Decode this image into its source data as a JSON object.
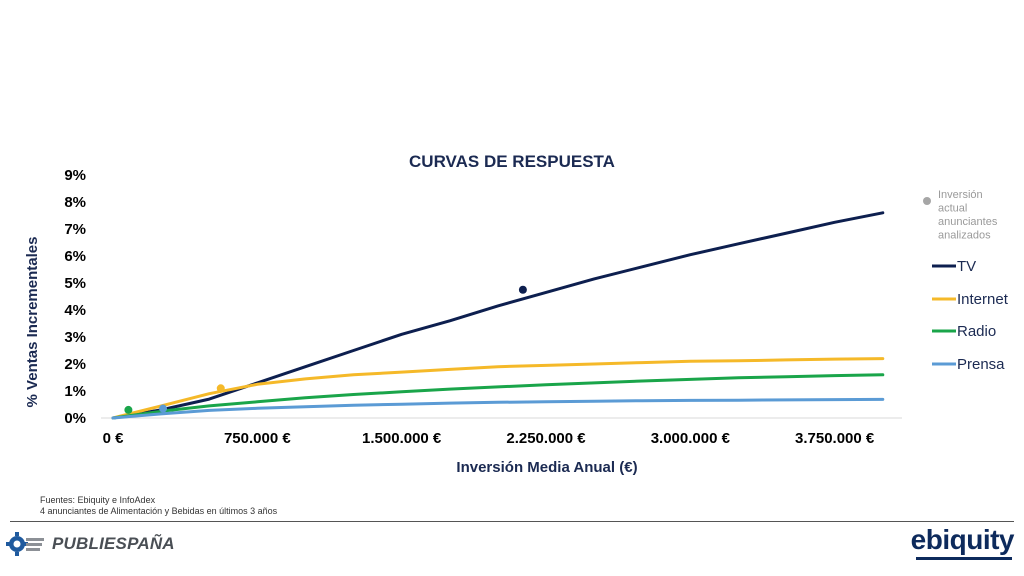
{
  "chart_data": {
    "type": "line",
    "title": "CURVAS DE RESPUESTA",
    "xlabel": "Inversión Media Anual (€)",
    "ylabel": "% Ventas Incrementales",
    "xlim": [
      0,
      4100000
    ],
    "ylim": [
      0,
      9
    ],
    "x_ticks": [
      0,
      750000,
      1500000,
      2250000,
      3000000,
      3750000
    ],
    "x_tick_labels": [
      "0 €",
      "750.000 €",
      "1.500.000 €",
      "2.250.000 €",
      "3.000.000 €",
      "3.750.000 €"
    ],
    "y_ticks": [
      0,
      1,
      2,
      3,
      4,
      5,
      6,
      7,
      8,
      9
    ],
    "y_tick_labels": [
      "0%",
      "1%",
      "2%",
      "3%",
      "4%",
      "5%",
      "6%",
      "7%",
      "8%",
      "9%"
    ],
    "grid": false,
    "legend_position": "right",
    "marker_legend": {
      "label": "Inversión actual anunciantes analizados",
      "label_lines": [
        "Inversión",
        "actual",
        "anunciantes",
        "analizados"
      ],
      "color": "#a6a6a6"
    },
    "series": [
      {
        "name": "TV",
        "color": "#0d1f4f",
        "x": [
          0,
          250000,
          500000,
          750000,
          1000000,
          1250000,
          1500000,
          1750000,
          2000000,
          2250000,
          2500000,
          2750000,
          3000000,
          3250000,
          3500000,
          3750000,
          4000000
        ],
        "y": [
          0,
          0.3,
          0.7,
          1.3,
          1.9,
          2.5,
          3.1,
          3.6,
          4.15,
          4.65,
          5.15,
          5.6,
          6.05,
          6.45,
          6.85,
          7.25,
          7.6
        ],
        "current_investment": {
          "x": 2130000,
          "y": 4.75
        }
      },
      {
        "name": "Internet",
        "color": "#f5b929",
        "x": [
          0,
          250000,
          500000,
          750000,
          1000000,
          1250000,
          1500000,
          1750000,
          2000000,
          2250000,
          2500000,
          2750000,
          3000000,
          3250000,
          3500000,
          3750000,
          4000000
        ],
        "y": [
          0,
          0.45,
          0.9,
          1.25,
          1.45,
          1.6,
          1.7,
          1.8,
          1.9,
          1.95,
          2.0,
          2.05,
          2.1,
          2.12,
          2.15,
          2.18,
          2.2
        ],
        "current_investment": {
          "x": 560000,
          "y": 1.1
        }
      },
      {
        "name": "Radio",
        "color": "#1aa54a",
        "x": [
          0,
          250000,
          500000,
          750000,
          1000000,
          1250000,
          1500000,
          1750000,
          2000000,
          2250000,
          2500000,
          2750000,
          3000000,
          3250000,
          3500000,
          3750000,
          4000000
        ],
        "y": [
          0,
          0.25,
          0.45,
          0.6,
          0.75,
          0.87,
          0.97,
          1.07,
          1.15,
          1.23,
          1.3,
          1.37,
          1.43,
          1.49,
          1.53,
          1.57,
          1.6
        ],
        "current_investment": {
          "x": 80000,
          "y": 0.3
        }
      },
      {
        "name": "Prensa",
        "color": "#5b9bd5",
        "x": [
          0,
          250000,
          500000,
          750000,
          1000000,
          1250000,
          1500000,
          1750000,
          2000000,
          2250000,
          2500000,
          2750000,
          3000000,
          3250000,
          3500000,
          3750000,
          4000000
        ],
        "y": [
          0,
          0.15,
          0.28,
          0.36,
          0.42,
          0.47,
          0.51,
          0.55,
          0.58,
          0.6,
          0.62,
          0.64,
          0.65,
          0.66,
          0.67,
          0.68,
          0.69
        ],
        "current_investment": {
          "x": 260000,
          "y": 0.35
        }
      }
    ]
  },
  "footer": {
    "source_line_1": "Fuentes: Ebiquity e InfoAdex",
    "source_line_2": "4 anunciantes de Alimentación y Bebidas en últimos 3 años",
    "left_logo_text": "PUBLIESPAÑA",
    "left_logo_icon": "gear-logo-icon",
    "right_logo_text": "ebiquity"
  }
}
